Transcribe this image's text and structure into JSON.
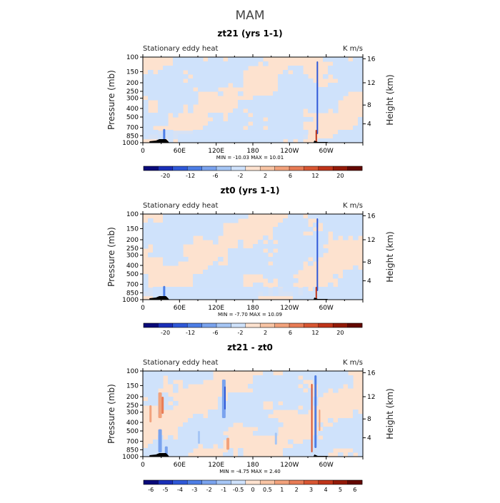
{
  "page_title": "MAM",
  "chart_data": [
    {
      "type": "heatmap",
      "title": "zt21 (yrs 1-1)",
      "left_subtitle": "Stationary eddy heat",
      "right_subtitle": "K m/s",
      "xlabel": "",
      "ylabel": "Pressure (mb)",
      "ylabel_right": "Height (km)",
      "x_ticks": [
        "0",
        "60E",
        "120E",
        "180",
        "120W",
        "60W"
      ],
      "y_ticks": [
        "100",
        "150",
        "200",
        "250",
        "300",
        "400",
        "500",
        "700",
        "850",
        "1000"
      ],
      "y_ticks_right": [
        "16",
        "12",
        "8",
        "4"
      ],
      "minmax": "MIN = -10.03   MAX =  10.01",
      "colorbar_labels": [
        "-20",
        "-12",
        "-6",
        "-2",
        "2",
        "6",
        "12",
        "20"
      ],
      "pattern": "full"
    },
    {
      "type": "heatmap",
      "title": "zt0 (yrs 1-1)",
      "left_subtitle": "Stationary eddy heat",
      "right_subtitle": "K m/s",
      "xlabel": "",
      "ylabel": "Pressure (mb)",
      "ylabel_right": "Height (km)",
      "x_ticks": [
        "0",
        "60E",
        "120E",
        "180",
        "120W",
        "60W"
      ],
      "y_ticks": [
        "100",
        "150",
        "200",
        "250",
        "300",
        "400",
        "500",
        "700",
        "850",
        "1000"
      ],
      "y_ticks_right": [
        "16",
        "12",
        "8",
        "4"
      ],
      "minmax": "MIN =  -7.70   MAX =  10.09",
      "colorbar_labels": [
        "-20",
        "-12",
        "-6",
        "-2",
        "2",
        "6",
        "12",
        "20"
      ],
      "pattern": "full"
    },
    {
      "type": "heatmap",
      "title": "zt21 - zt0",
      "left_subtitle": "Stationary eddy heat",
      "right_subtitle": "K m/s",
      "xlabel": "",
      "ylabel": "Pressure (mb)",
      "ylabel_right": "Height (km)",
      "x_ticks": [
        "0",
        "60E",
        "120E",
        "180",
        "120W",
        "60W"
      ],
      "y_ticks": [
        "100",
        "150",
        "200",
        "250",
        "300",
        "400",
        "500",
        "700",
        "850",
        "1000"
      ],
      "y_ticks_right": [
        "16",
        "12",
        "8",
        "4"
      ],
      "minmax": "MIN =  -4.75   MAX =    2.40",
      "colorbar_labels": [
        "-6",
        "-5",
        "-4",
        "-3",
        "-2",
        "-1",
        "-0.5",
        "0",
        "0.5",
        "1",
        "2",
        "3",
        "4",
        "5",
        "6"
      ],
      "pattern": "diff"
    }
  ],
  "colorbar_colors": [
    "#0a0a7a",
    "#1a2fb8",
    "#2f58d8",
    "#4d7ee6",
    "#7aa3ee",
    "#a6c6f5",
    "#cfe2fb",
    "#fde2cf",
    "#f8c4a4",
    "#f2a27c",
    "#e87c55",
    "#d85632",
    "#bf3419",
    "#931a08",
    "#640800"
  ]
}
